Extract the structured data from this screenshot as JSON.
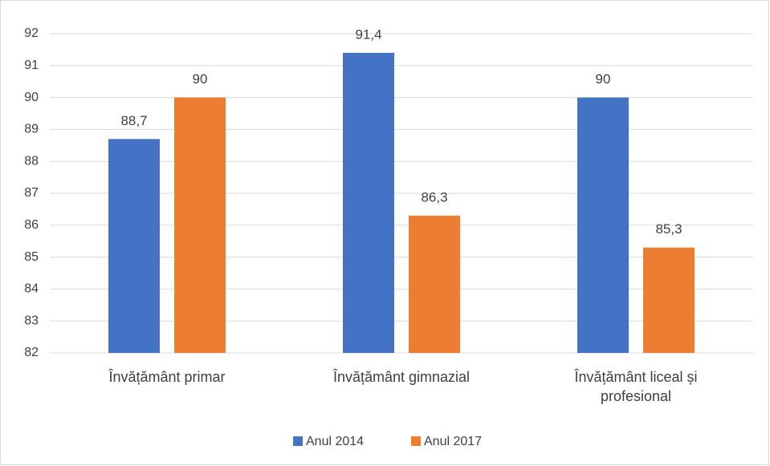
{
  "chart_data": {
    "type": "bar",
    "categories": [
      "Învățământ primar",
      "Învățământ gimnazial",
      "Învățământ liceal și profesional"
    ],
    "series": [
      {
        "name": "Anul 2014",
        "color": "#4472c4",
        "values": [
          88.7,
          91.4,
          90
        ],
        "value_labels": [
          "88,7",
          "91,4",
          "90"
        ]
      },
      {
        "name": "Anul 2017",
        "color": "#ed7d31",
        "values": [
          90,
          86.3,
          85.3
        ],
        "value_labels": [
          "90",
          "86,3",
          "85,3"
        ]
      }
    ],
    "ylim": [
      82,
      92
    ],
    "yticks": [
      82,
      83,
      84,
      85,
      86,
      87,
      88,
      89,
      90,
      91,
      92
    ],
    "grid": true,
    "legend": "bottom"
  }
}
